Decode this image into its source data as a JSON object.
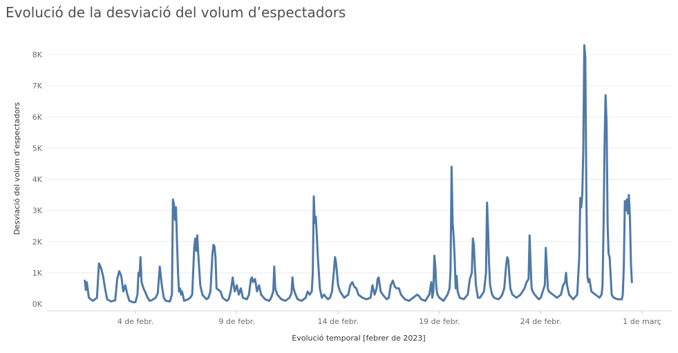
{
  "chart_data": {
    "type": "line",
    "title": "Evolució de la desviació del volum d’espectadors",
    "xlabel": "Evolució temporal [febrer de 2023]",
    "ylabel": "Desviació del volum d’espectadors",
    "x_range": [
      0.5,
      29.5
    ],
    "ylim": [
      -150,
      8700
    ],
    "grid": "horizontal",
    "legend": "none",
    "y_ticks": [
      {
        "value": 0,
        "label": "0K"
      },
      {
        "value": 1000,
        "label": "1K"
      },
      {
        "value": 2000,
        "label": "2K"
      },
      {
        "value": 3000,
        "label": "3K"
      },
      {
        "value": 4000,
        "label": "4K"
      },
      {
        "value": 5000,
        "label": "5K"
      },
      {
        "value": 6000,
        "label": "6K"
      },
      {
        "value": 7000,
        "label": "7K"
      },
      {
        "value": 8000,
        "label": "8K"
      }
    ],
    "x_ticks": [
      {
        "value": 4,
        "label": "4 de febr."
      },
      {
        "value": 9,
        "label": "9 de febr."
      },
      {
        "value": 14,
        "label": "14 de febr."
      },
      {
        "value": 19,
        "label": "19 de febr."
      },
      {
        "value": 24,
        "label": "24 de febr."
      },
      {
        "value": 29,
        "label": "1 de març"
      }
    ],
    "series": [
      {
        "color": "#4e79a7",
        "points": [
          [
            1.5,
            750
          ],
          [
            1.55,
            450
          ],
          [
            1.6,
            700
          ],
          [
            1.7,
            200
          ],
          [
            1.9,
            100
          ],
          [
            2.0,
            150
          ],
          [
            2.1,
            200
          ],
          [
            2.2,
            1300
          ],
          [
            2.3,
            1150
          ],
          [
            2.4,
            900
          ],
          [
            2.5,
            500
          ],
          [
            2.6,
            150
          ],
          [
            2.8,
            80
          ],
          [
            2.9,
            100
          ],
          [
            3.0,
            120
          ],
          [
            3.1,
            800
          ],
          [
            3.2,
            1050
          ],
          [
            3.3,
            900
          ],
          [
            3.4,
            400
          ],
          [
            3.5,
            600
          ],
          [
            3.6,
            300
          ],
          [
            3.7,
            100
          ],
          [
            3.9,
            50
          ],
          [
            4.0,
            60
          ],
          [
            4.1,
            300
          ],
          [
            4.15,
            1000
          ],
          [
            4.2,
            900
          ],
          [
            4.25,
            1500
          ],
          [
            4.3,
            700
          ],
          [
            4.4,
            500
          ],
          [
            4.6,
            200
          ],
          [
            4.7,
            100
          ],
          [
            4.8,
            120
          ],
          [
            5.0,
            200
          ],
          [
            5.1,
            350
          ],
          [
            5.2,
            1200
          ],
          [
            5.3,
            600
          ],
          [
            5.4,
            200
          ],
          [
            5.5,
            100
          ],
          [
            5.7,
            80
          ],
          [
            5.8,
            300
          ],
          [
            5.85,
            3350
          ],
          [
            5.9,
            3200
          ],
          [
            5.95,
            2700
          ],
          [
            6.0,
            3100
          ],
          [
            6.05,
            2000
          ],
          [
            6.1,
            1000
          ],
          [
            6.15,
            400
          ],
          [
            6.2,
            500
          ],
          [
            6.25,
            300
          ],
          [
            6.3,
            400
          ],
          [
            6.4,
            100
          ],
          [
            6.6,
            150
          ],
          [
            6.7,
            200
          ],
          [
            6.8,
            300
          ],
          [
            6.9,
            1800
          ],
          [
            6.95,
            2100
          ],
          [
            7.0,
            1700
          ],
          [
            7.05,
            2200
          ],
          [
            7.1,
            1600
          ],
          [
            7.2,
            600
          ],
          [
            7.3,
            300
          ],
          [
            7.5,
            150
          ],
          [
            7.6,
            200
          ],
          [
            7.7,
            400
          ],
          [
            7.8,
            1600
          ],
          [
            7.85,
            1900
          ],
          [
            7.9,
            1850
          ],
          [
            7.95,
            1500
          ],
          [
            8.0,
            500
          ],
          [
            8.2,
            400
          ],
          [
            8.3,
            200
          ],
          [
            8.5,
            100
          ],
          [
            8.6,
            150
          ],
          [
            8.7,
            400
          ],
          [
            8.8,
            850
          ],
          [
            8.85,
            600
          ],
          [
            8.9,
            400
          ],
          [
            9.0,
            600
          ],
          [
            9.1,
            300
          ],
          [
            9.2,
            500
          ],
          [
            9.3,
            200
          ],
          [
            9.5,
            150
          ],
          [
            9.6,
            300
          ],
          [
            9.7,
            800
          ],
          [
            9.75,
            850
          ],
          [
            9.8,
            700
          ],
          [
            9.9,
            800
          ],
          [
            10.0,
            400
          ],
          [
            10.1,
            600
          ],
          [
            10.2,
            300
          ],
          [
            10.4,
            150
          ],
          [
            10.6,
            100
          ],
          [
            10.7,
            200
          ],
          [
            10.8,
            400
          ],
          [
            10.85,
            1200
          ],
          [
            10.9,
            500
          ],
          [
            11.0,
            300
          ],
          [
            11.2,
            150
          ],
          [
            11.4,
            100
          ],
          [
            11.6,
            200
          ],
          [
            11.7,
            350
          ],
          [
            11.75,
            850
          ],
          [
            11.8,
            500
          ],
          [
            11.9,
            300
          ],
          [
            12.0,
            150
          ],
          [
            12.2,
            100
          ],
          [
            12.4,
            200
          ],
          [
            12.5,
            400
          ],
          [
            12.6,
            300
          ],
          [
            12.7,
            400
          ],
          [
            12.75,
            1000
          ],
          [
            12.8,
            3450
          ],
          [
            12.85,
            2600
          ],
          [
            12.9,
            2800
          ],
          [
            12.95,
            2200
          ],
          [
            13.0,
            1500
          ],
          [
            13.1,
            500
          ],
          [
            13.2,
            200
          ],
          [
            13.3,
            300
          ],
          [
            13.5,
            150
          ],
          [
            13.6,
            200
          ],
          [
            13.7,
            400
          ],
          [
            13.8,
            1100
          ],
          [
            13.85,
            1500
          ],
          [
            13.9,
            1300
          ],
          [
            14.0,
            600
          ],
          [
            14.1,
            400
          ],
          [
            14.3,
            200
          ],
          [
            14.5,
            300
          ],
          [
            14.6,
            600
          ],
          [
            14.7,
            700
          ],
          [
            14.8,
            550
          ],
          [
            14.9,
            500
          ],
          [
            15.0,
            300
          ],
          [
            15.2,
            200
          ],
          [
            15.4,
            150
          ],
          [
            15.6,
            200
          ],
          [
            15.7,
            600
          ],
          [
            15.8,
            300
          ],
          [
            15.9,
            500
          ],
          [
            15.95,
            800
          ],
          [
            16.0,
            850
          ],
          [
            16.1,
            400
          ],
          [
            16.2,
            300
          ],
          [
            16.4,
            150
          ],
          [
            16.5,
            200
          ],
          [
            16.6,
            600
          ],
          [
            16.7,
            750
          ],
          [
            16.8,
            550
          ],
          [
            16.9,
            500
          ],
          [
            17.0,
            500
          ],
          [
            17.1,
            300
          ],
          [
            17.3,
            150
          ],
          [
            17.5,
            100
          ],
          [
            17.7,
            200
          ],
          [
            17.9,
            300
          ],
          [
            18.0,
            250
          ],
          [
            18.1,
            150
          ],
          [
            18.3,
            100
          ],
          [
            18.5,
            300
          ],
          [
            18.6,
            700
          ],
          [
            18.65,
            200
          ],
          [
            18.7,
            400
          ],
          [
            18.75,
            1550
          ],
          [
            18.8,
            1200
          ],
          [
            18.85,
            500
          ],
          [
            18.9,
            300
          ],
          [
            19.0,
            200
          ],
          [
            19.2,
            100
          ],
          [
            19.4,
            300
          ],
          [
            19.5,
            500
          ],
          [
            19.55,
            1100
          ],
          [
            19.6,
            4400
          ],
          [
            19.65,
            2600
          ],
          [
            19.7,
            2200
          ],
          [
            19.75,
            1500
          ],
          [
            19.8,
            500
          ],
          [
            19.85,
            900
          ],
          [
            19.9,
            400
          ],
          [
            20.0,
            200
          ],
          [
            20.2,
            150
          ],
          [
            20.4,
            300
          ],
          [
            20.5,
            800
          ],
          [
            20.6,
            1000
          ],
          [
            20.65,
            2100
          ],
          [
            20.7,
            1900
          ],
          [
            20.75,
            1200
          ],
          [
            20.8,
            600
          ],
          [
            20.9,
            200
          ],
          [
            21.0,
            200
          ],
          [
            21.1,
            300
          ],
          [
            21.2,
            400
          ],
          [
            21.3,
            1000
          ],
          [
            21.35,
            3250
          ],
          [
            21.4,
            2400
          ],
          [
            21.45,
            1300
          ],
          [
            21.5,
            600
          ],
          [
            21.6,
            300
          ],
          [
            21.7,
            200
          ],
          [
            21.9,
            150
          ],
          [
            22.0,
            200
          ],
          [
            22.1,
            300
          ],
          [
            22.2,
            500
          ],
          [
            22.3,
            1300
          ],
          [
            22.35,
            1500
          ],
          [
            22.4,
            1400
          ],
          [
            22.45,
            900
          ],
          [
            22.5,
            500
          ],
          [
            22.6,
            300
          ],
          [
            22.8,
            200
          ],
          [
            23.0,
            300
          ],
          [
            23.2,
            500
          ],
          [
            23.3,
            700
          ],
          [
            23.4,
            800
          ],
          [
            23.45,
            2200
          ],
          [
            23.5,
            1300
          ],
          [
            23.55,
            500
          ],
          [
            23.6,
            400
          ],
          [
            23.7,
            300
          ],
          [
            23.9,
            150
          ],
          [
            24.0,
            200
          ],
          [
            24.1,
            400
          ],
          [
            24.2,
            600
          ],
          [
            24.25,
            1800
          ],
          [
            24.3,
            1200
          ],
          [
            24.35,
            500
          ],
          [
            24.4,
            400
          ],
          [
            24.6,
            300
          ],
          [
            24.8,
            200
          ],
          [
            25.0,
            300
          ],
          [
            25.1,
            600
          ],
          [
            25.2,
            700
          ],
          [
            25.25,
            1000
          ],
          [
            25.3,
            600
          ],
          [
            25.4,
            300
          ],
          [
            25.6,
            150
          ],
          [
            25.8,
            300
          ],
          [
            25.9,
            1500
          ],
          [
            25.95,
            3400
          ],
          [
            26.0,
            3100
          ],
          [
            26.05,
            3500
          ],
          [
            26.1,
            5000
          ],
          [
            26.15,
            8300
          ],
          [
            26.2,
            7900
          ],
          [
            26.25,
            3500
          ],
          [
            26.3,
            900
          ],
          [
            26.35,
            700
          ],
          [
            26.4,
            800
          ],
          [
            26.5,
            400
          ],
          [
            26.7,
            300
          ],
          [
            26.9,
            200
          ],
          [
            27.0,
            300
          ],
          [
            27.05,
            600
          ],
          [
            27.1,
            2500
          ],
          [
            27.15,
            5200
          ],
          [
            27.2,
            6700
          ],
          [
            27.25,
            5800
          ],
          [
            27.3,
            2500
          ],
          [
            27.35,
            1600
          ],
          [
            27.4,
            1500
          ],
          [
            27.45,
            900
          ],
          [
            27.5,
            300
          ],
          [
            27.6,
            200
          ],
          [
            27.8,
            150
          ],
          [
            28.0,
            150
          ],
          [
            28.05,
            300
          ],
          [
            28.1,
            1200
          ],
          [
            28.15,
            3300
          ],
          [
            28.2,
            3000
          ],
          [
            28.25,
            3350
          ],
          [
            28.3,
            2900
          ],
          [
            28.35,
            3500
          ],
          [
            28.4,
            2800
          ],
          [
            28.45,
            1300
          ],
          [
            28.5,
            700
          ]
        ]
      }
    ]
  }
}
